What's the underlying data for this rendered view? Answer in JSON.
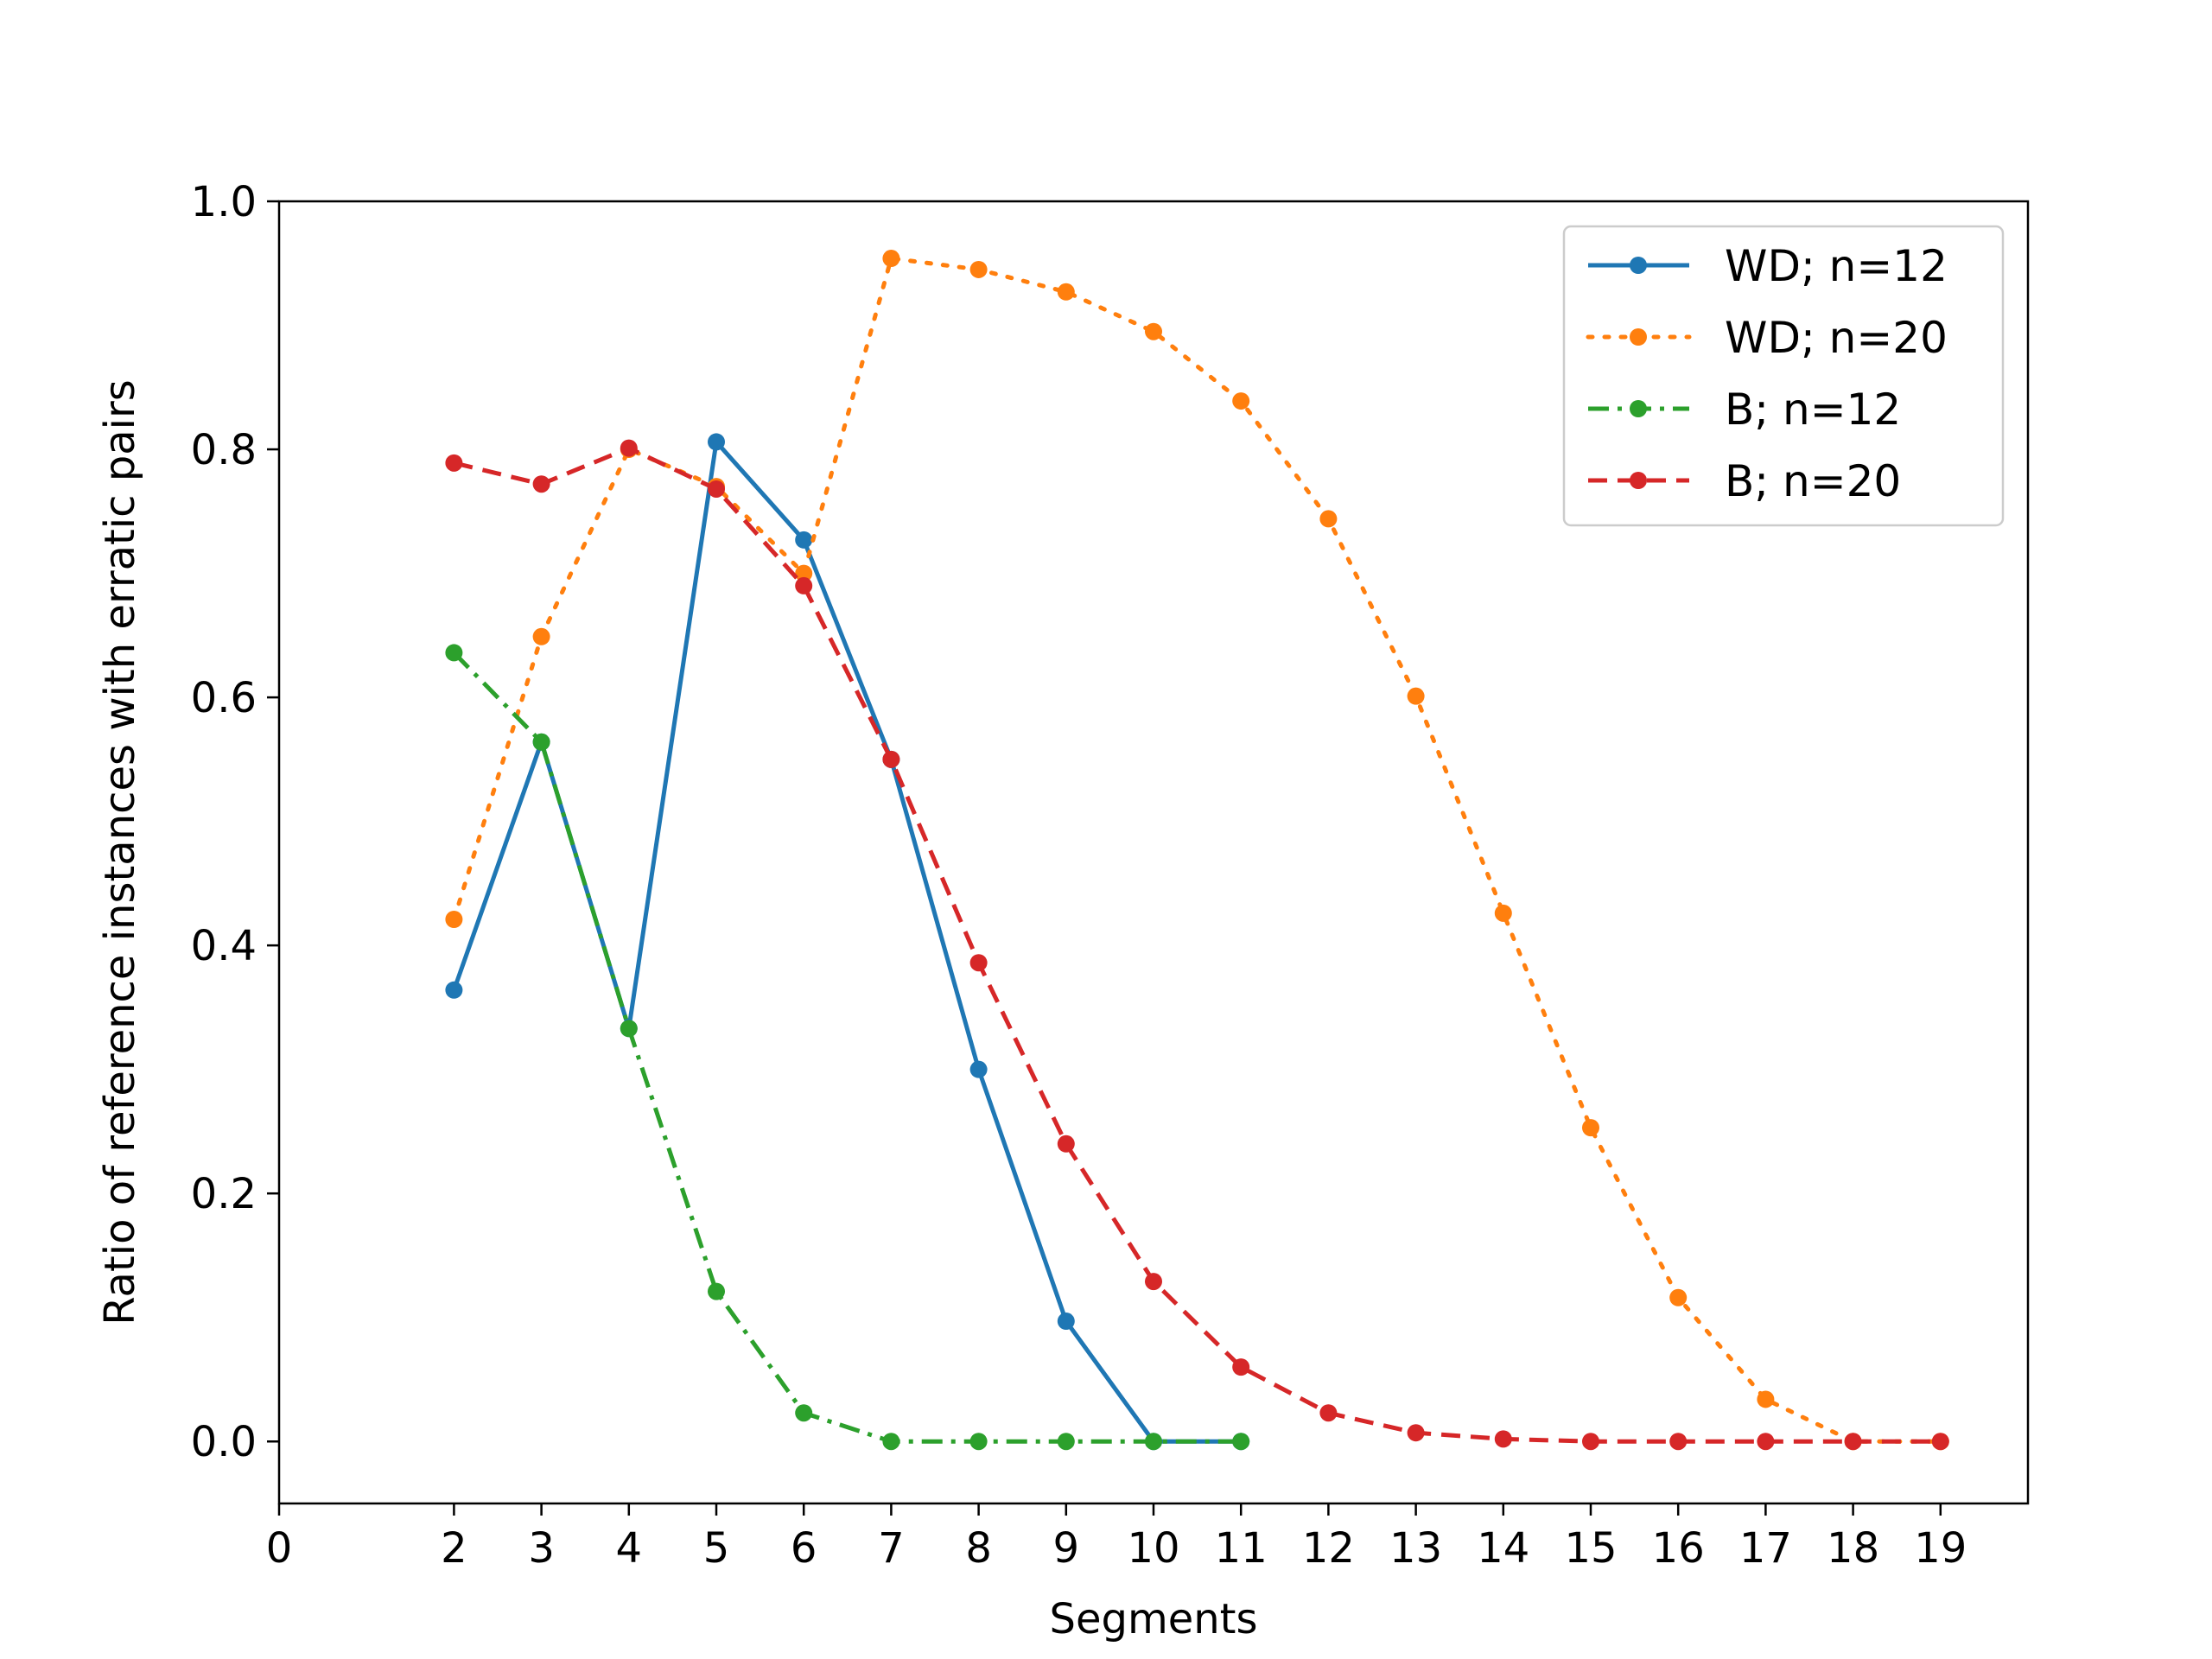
{
  "chart_data": {
    "type": "line",
    "title": "",
    "xlabel": "Segments",
    "ylabel": "Ratio of reference instances with erratic pairs",
    "xlim": [
      0,
      20
    ],
    "ylim": [
      -0.05,
      1.0
    ],
    "x_ticks": [
      0,
      2,
      3,
      4,
      5,
      6,
      7,
      8,
      9,
      10,
      11,
      12,
      13,
      14,
      15,
      16,
      17,
      18,
      19
    ],
    "x_tick_labels": [
      "0",
      "2",
      "3",
      "4",
      "5",
      "6",
      "7",
      "8",
      "9",
      "10",
      "11",
      "12",
      "13",
      "14",
      "15",
      "16",
      "17",
      "18",
      "19"
    ],
    "y_ticks": [
      0.0,
      0.2,
      0.4,
      0.6,
      0.8,
      1.0
    ],
    "y_tick_labels": [
      "0.0",
      "0.2",
      "0.4",
      "0.6",
      "0.8",
      "1.0"
    ],
    "grid": false,
    "legend_position": "top-right",
    "series": [
      {
        "name": "WD; n=12",
        "color": "#1f77b4",
        "linestyle": "solid",
        "x": [
          2,
          3,
          4,
          5,
          6,
          7,
          8,
          9,
          10,
          11
        ],
        "y": [
          0.364,
          0.564,
          0.333,
          0.806,
          0.727,
          0.55,
          0.3,
          0.097,
          0.0,
          0.0
        ]
      },
      {
        "name": "WD; n=20",
        "color": "#ff7f0e",
        "linestyle": "dotted",
        "x": [
          2,
          3,
          4,
          5,
          6,
          7,
          8,
          9,
          10,
          11,
          12,
          13,
          14,
          15,
          16,
          17,
          18,
          19
        ],
        "y": [
          0.421,
          0.649,
          0.8,
          0.77,
          0.7,
          0.954,
          0.945,
          0.927,
          0.895,
          0.839,
          0.744,
          0.601,
          0.426,
          0.253,
          0.116,
          0.034,
          0.0,
          0.0
        ]
      },
      {
        "name": "B; n=12",
        "color": "#2ca02c",
        "linestyle": "dashdot",
        "x": [
          2,
          3,
          4,
          5,
          6,
          7,
          8,
          9,
          10,
          11
        ],
        "y": [
          0.636,
          0.564,
          0.333,
          0.121,
          0.023,
          0.0,
          0.0,
          0.0,
          0.0,
          0.0
        ]
      },
      {
        "name": "B; n=20",
        "color": "#d62728",
        "linestyle": "dashed",
        "x": [
          2,
          3,
          4,
          5,
          6,
          7,
          8,
          9,
          10,
          11,
          12,
          13,
          14,
          15,
          16,
          17,
          18,
          19
        ],
        "y": [
          0.789,
          0.772,
          0.801,
          0.768,
          0.69,
          0.55,
          0.386,
          0.24,
          0.129,
          0.06,
          0.023,
          0.007,
          0.002,
          0.0,
          0.0,
          0.0,
          0.0,
          0.0
        ]
      }
    ]
  }
}
